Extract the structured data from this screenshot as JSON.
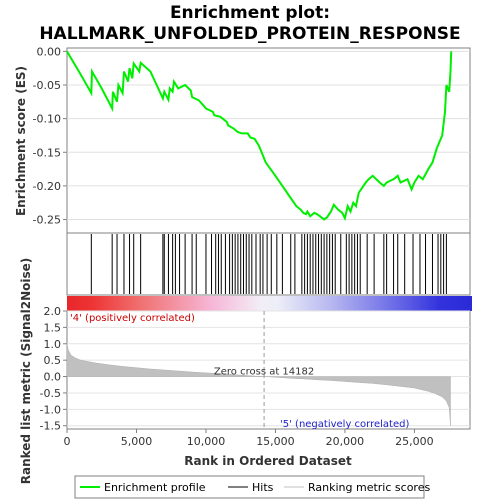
{
  "chart_data": {
    "type": "line",
    "title_line1": "Enrichment plot:",
    "title_line2": "HALLMARK_UNFOLDED_PROTEIN_RESPONSE",
    "top_panel": {
      "ylabel": "Enrichment score (ES)",
      "ylim": [
        -0.27,
        0.005
      ],
      "yticks": [
        0.0,
        -0.05,
        -0.1,
        -0.15,
        -0.2,
        -0.25
      ],
      "ytick_labels": [
        "0.00",
        "-0.05",
        "-0.10",
        "-0.15",
        "-0.20",
        "-0.25"
      ],
      "series": [
        {
          "name": "Enrichment profile",
          "color": "#00ee00",
          "x": [
            0,
            1000,
            1750,
            1800,
            2500,
            3250,
            3300,
            3600,
            3700,
            4000,
            4100,
            4400,
            4500,
            4700,
            4800,
            5200,
            5300,
            6000,
            6900,
            7000,
            7300,
            7400,
            7600,
            7700,
            8000,
            8500,
            8900,
            9000,
            9500,
            9800,
            10000,
            10500,
            10600,
            11000,
            11200,
            11500,
            11600,
            12000,
            12300,
            12600,
            13000,
            13200,
            13500,
            13800,
            14000,
            14300,
            15000,
            15500,
            16000,
            16500,
            16800,
            17000,
            17200,
            17300,
            17500,
            17800,
            18000,
            18200,
            18500,
            18700,
            19000,
            19200,
            19500,
            19800,
            20000,
            20200,
            20400,
            20600,
            20800,
            21000,
            21500,
            21700,
            22000,
            22500,
            22800,
            23000,
            23500,
            23800,
            24000,
            24500,
            24800,
            25000,
            25300,
            25600,
            26000,
            26300,
            26600,
            26900,
            27000,
            27200,
            27300,
            27400,
            27500,
            27600,
            27650
          ],
          "y": [
            0.0,
            -0.035,
            -0.062,
            -0.03,
            -0.055,
            -0.085,
            -0.06,
            -0.075,
            -0.05,
            -0.062,
            -0.03,
            -0.045,
            -0.025,
            -0.04,
            -0.018,
            -0.03,
            -0.017,
            -0.03,
            -0.07,
            -0.06,
            -0.072,
            -0.055,
            -0.06,
            -0.045,
            -0.055,
            -0.05,
            -0.058,
            -0.068,
            -0.073,
            -0.08,
            -0.085,
            -0.09,
            -0.095,
            -0.097,
            -0.1,
            -0.105,
            -0.11,
            -0.115,
            -0.12,
            -0.122,
            -0.122,
            -0.128,
            -0.13,
            -0.14,
            -0.15,
            -0.165,
            -0.185,
            -0.2,
            -0.215,
            -0.23,
            -0.235,
            -0.24,
            -0.242,
            -0.238,
            -0.245,
            -0.24,
            -0.242,
            -0.245,
            -0.25,
            -0.247,
            -0.238,
            -0.228,
            -0.235,
            -0.24,
            -0.248,
            -0.23,
            -0.238,
            -0.225,
            -0.23,
            -0.21,
            -0.195,
            -0.19,
            -0.185,
            -0.195,
            -0.2,
            -0.195,
            -0.19,
            -0.185,
            -0.195,
            -0.19,
            -0.205,
            -0.195,
            -0.185,
            -0.19,
            -0.175,
            -0.165,
            -0.145,
            -0.13,
            -0.125,
            -0.09,
            -0.05,
            -0.055,
            -0.06,
            -0.03,
            0.0
          ]
        }
      ]
    },
    "hits_panel": {
      "series_name": "Hits",
      "positions": [
        1750,
        3250,
        3600,
        4100,
        4500,
        4800,
        5300,
        6900,
        7000,
        7300,
        7600,
        7800,
        8100,
        8500,
        9000,
        9300,
        10000,
        10400,
        10700,
        10900,
        11100,
        11400,
        11700,
        11900,
        12100,
        12300,
        12500,
        12700,
        12900,
        13100,
        13300,
        13600,
        13900,
        14100,
        14400,
        14700,
        15100,
        15500,
        16100,
        16400,
        16900,
        17100,
        17300,
        17500,
        17700,
        17900,
        18100,
        18300,
        18500,
        18700,
        18900,
        19100,
        19300,
        19700,
        20100,
        20300,
        20500,
        20700,
        20900,
        21100,
        21600,
        22100,
        22800,
        23000,
        23500,
        23800,
        24300,
        24900,
        25400,
        25800,
        26300,
        26700,
        26900,
        27100,
        27300
      ]
    },
    "metric_panel": {
      "ylabel": "Ranked list metric (Signal2Noise)",
      "series_name": "Ranking metric scores",
      "ylim": [
        -1.6,
        2.0
      ],
      "yticks": [
        2.0,
        1.5,
        1.0,
        0.5,
        0.0,
        -0.5,
        -1.0,
        -1.5
      ],
      "ytick_labels": [
        "2.0",
        "1.5",
        "1.0",
        "0.5",
        "0.0",
        "-0.5",
        "-1.0",
        "-1.5"
      ],
      "x": [
        0,
        100,
        300,
        600,
        1000,
        2000,
        3000,
        4000,
        5000,
        6000,
        7000,
        8000,
        9000,
        10000,
        11000,
        12000,
        13000,
        14182,
        15000,
        16000,
        17000,
        18000,
        19000,
        20000,
        21000,
        22000,
        23000,
        24000,
        25000,
        25500,
        26000,
        26500,
        27000,
        27300,
        27500,
        27600
      ],
      "values": [
        1.0,
        0.8,
        0.65,
        0.57,
        0.5,
        0.42,
        0.36,
        0.31,
        0.27,
        0.23,
        0.2,
        0.17,
        0.14,
        0.11,
        0.09,
        0.06,
        0.03,
        0.0,
        -0.02,
        -0.05,
        -0.07,
        -0.1,
        -0.12,
        -0.15,
        -0.18,
        -0.21,
        -0.25,
        -0.3,
        -0.35,
        -0.4,
        -0.45,
        -0.52,
        -0.62,
        -0.75,
        -0.95,
        -1.5
      ],
      "zero_cross": 14182,
      "zero_cross_label": "Zero cross at 14182",
      "positive_label": "'4' (positively correlated)",
      "negative_label": "'5' (negatively correlated)"
    },
    "xaxis": {
      "label": "Rank in Ordered Dataset",
      "xlim": [
        0,
        29000
      ],
      "ticks": [
        0,
        5000,
        10000,
        15000,
        20000,
        25000
      ],
      "tick_labels": [
        "0",
        "5,000",
        "10,000",
        "15,000",
        "20,000",
        "25,000"
      ],
      "n_genes": 27650
    },
    "colors": {
      "profile": "#00ee00",
      "hits": "#000000",
      "metric_fill": "#c0c0c0",
      "positive_label": "#cc0000",
      "negative_label": "#2222cc",
      "bar_red": "#e8272a",
      "bar_blue": "#2a2ad8"
    },
    "legend": {
      "placement": "bottom",
      "items": [
        "Enrichment profile",
        "Hits",
        "Ranking metric scores"
      ]
    }
  }
}
